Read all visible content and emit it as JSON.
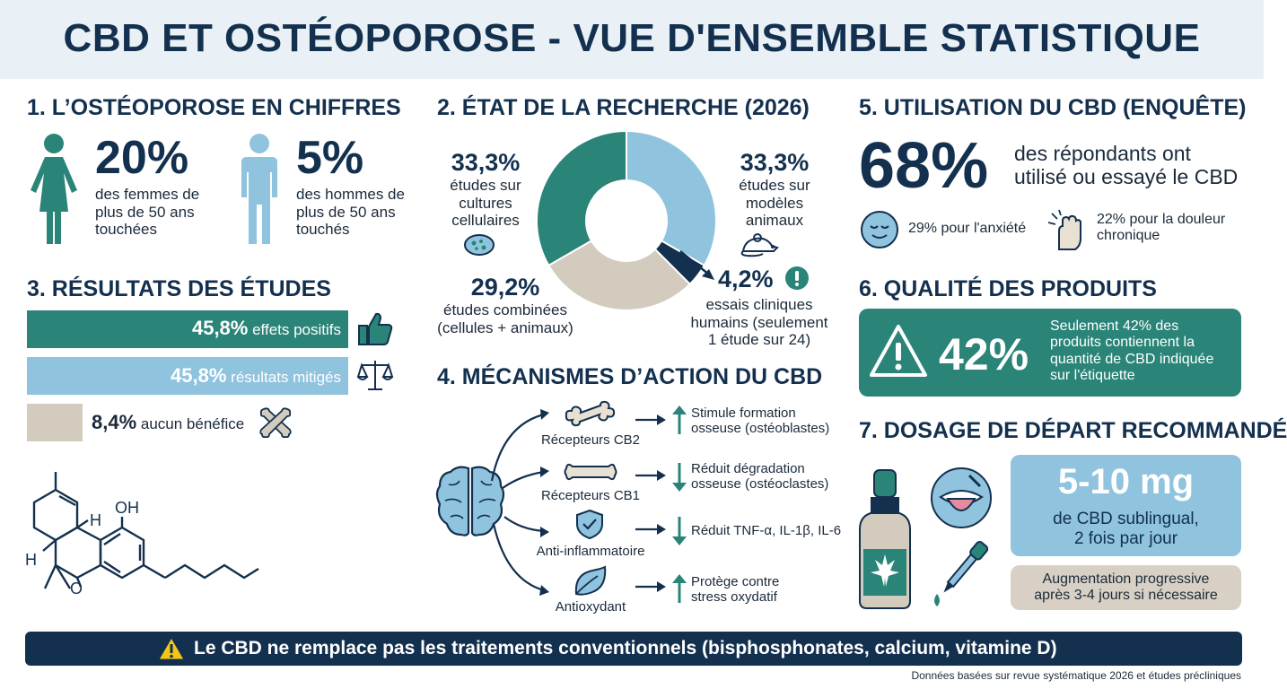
{
  "title": "CBD ET OSTÉOPOROSE - VUE D'ENSEMBLE STATISTIQUE",
  "s1": {
    "title": "1. L’OSTÉOPOROSE EN CHIFFRES",
    "women_pct": "20%",
    "women_text": [
      "des femmes de",
      "plus de 50 ans",
      "touchées"
    ],
    "men_pct": "5%",
    "men_text": [
      "des hommes de",
      "plus de 50 ans",
      "touchés"
    ]
  },
  "s2": {
    "title": "2. ÉTAT DE LA RECHERCHE (2026)",
    "slices": [
      {
        "pct": "33,3%",
        "value": 33.3,
        "lines": [
          "études sur",
          "modèles",
          "animaux"
        ],
        "color": "#8fc3de"
      },
      {
        "pct": "4,2%",
        "value": 4.2,
        "lines": [
          "essais cliniques",
          "humains (seulement",
          "1 étude sur 24)"
        ],
        "color": "#13304f"
      },
      {
        "pct": "29,2%",
        "value": 29.2,
        "lines": [
          "études combinées",
          "(cellules + animaux)"
        ],
        "color": "#d3cbbe"
      },
      {
        "pct": "33,3%",
        "value": 33.3,
        "lines": [
          "études sur",
          "cultures",
          "cellulaires"
        ],
        "color": "#2a8478"
      }
    ]
  },
  "s3": {
    "title": "3. RÉSULTATS DES ÉTUDES",
    "bars": [
      {
        "pct": "45,8%",
        "value": 45.8,
        "label": "effets positifs",
        "color": "#2a8478",
        "icon": "thumbs-up-icon"
      },
      {
        "pct": "45,8%",
        "value": 45.8,
        "label": "résultats mitigés",
        "color": "#8fc3de",
        "icon": "balance-scale-icon"
      },
      {
        "pct": "8,4%",
        "value": 8.4,
        "label": "aucun bénéfice",
        "color": "#d3cbbe",
        "icon": "broken-bone-icon"
      }
    ],
    "molecule_label": "OH",
    "molecule_h1": "H",
    "molecule_h2": "H",
    "molecule_o": "O"
  },
  "s4": {
    "title": "4. MÉCANISMES D’ACTION DU CBD",
    "items": [
      {
        "label": "Récepteurs CB2",
        "effect": [
          "Stimule formation",
          "osseuse (ostéoblastes)"
        ],
        "dir": "up"
      },
      {
        "label": "Récepteurs CB1",
        "effect": [
          "Réduit dégradation",
          "osseuse (ostéoclastes)"
        ],
        "dir": "down"
      },
      {
        "label": "Anti-inflammatoire",
        "effect": [
          "Réduit TNF-α, IL-1β, IL-6"
        ],
        "dir": "down"
      },
      {
        "label": "Antioxydant",
        "effect": [
          "Protège contre",
          "stress oxydatif"
        ],
        "dir": "up"
      }
    ]
  },
  "s5": {
    "title": "5. UTILISATION DU CBD (ENQUÊTE)",
    "pct": "68%",
    "text": [
      "des répondants ont",
      "utilisé ou essayé le CBD"
    ],
    "anxiety": "29% pour l'anxiété",
    "pain": [
      "22% pour la douleur",
      "chronique"
    ]
  },
  "s6": {
    "title": "6. QUALITÉ DES PRODUITS",
    "pct": "42%",
    "text": [
      "Seulement 42% des",
      "produits contiennent la",
      "quantité de CBD indiquée",
      "sur l'étiquette"
    ]
  },
  "s7": {
    "title": "7. DOSAGE DE DÉPART RECOMMANDÉ",
    "dose": "5-10 mg",
    "dose_text": [
      "de CBD sublingual,",
      "2 fois par jour"
    ],
    "note": [
      "Augmentation progressive",
      "après 3-4 jours si nécessaire"
    ]
  },
  "warning": "Le CBD ne remplace pas les traitements conventionnels (bisphosphonates, calcium, vitamine D)",
  "source": "Données basées sur revue systématique 2026 et études précliniques"
}
